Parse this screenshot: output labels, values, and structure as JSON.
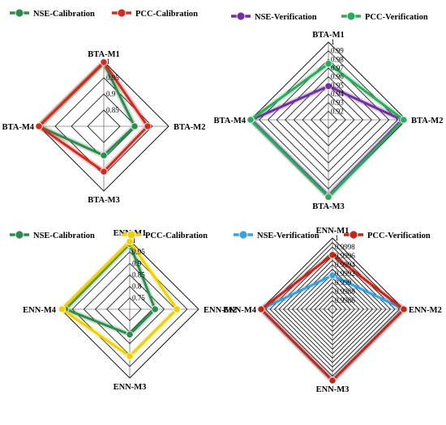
{
  "chart_data": [
    {
      "type": "radar",
      "axes": [
        "BTA-M1",
        "BTA-M2",
        "BTA-M3",
        "BTA-M4"
      ],
      "rlim": [
        0.8,
        1.0
      ],
      "ticks": [
        0.85,
        0.9,
        0.95,
        1
      ],
      "tick_labels": [
        "0.85",
        "0.9",
        "0.95",
        "1"
      ],
      "rings": [
        0.85,
        0.9,
        0.95,
        1
      ],
      "legend_position": "top",
      "series": [
        {
          "name": "NSE-Calibration",
          "color": "#2e8b4e",
          "values": [
            0.995,
            0.895,
            0.89,
            1.0
          ]
        },
        {
          "name": "PCC-Calibration",
          "color": "#d42a20",
          "values": [
            0.998,
            0.935,
            0.94,
            1.0
          ]
        }
      ]
    },
    {
      "type": "radar",
      "axes": [
        "BTA-M1",
        "BTA-M2",
        "BTA-M3",
        "BTA-M4"
      ],
      "rlim": [
        0.91,
        1.0
      ],
      "ticks": [
        0.92,
        0.93,
        0.94,
        0.95,
        0.96,
        0.97,
        0.98,
        0.99,
        1
      ],
      "tick_labels": [
        "0.92",
        "0.93",
        "0.94",
        "0.95",
        "0.96",
        "0.97",
        "0.98",
        "0.99",
        "1"
      ],
      "rings": [
        0.92,
        0.93,
        0.94,
        0.95,
        0.96,
        0.97,
        0.98,
        0.99,
        1
      ],
      "legend_position": "top",
      "series": [
        {
          "name": "NSE-Verification",
          "color": "#7030a0",
          "values": [
            0.949,
            0.995,
            0.998,
            0.999
          ]
        },
        {
          "name": "PCC-Verification",
          "color": "#2eaa5c",
          "values": [
            0.975,
            0.997,
            0.9995,
            1.0
          ]
        }
      ]
    },
    {
      "type": "radar",
      "axes": [
        "ENN-M1",
        "ENN-M2",
        "ENN-M3",
        "ENN-M4"
      ],
      "rlim": [
        0.7,
        1.0
      ],
      "ticks": [
        0.75,
        0.8,
        0.85,
        0.9,
        0.95,
        1
      ],
      "tick_labels": [
        "0.75",
        "0.8",
        "0.85",
        "0.9",
        "0.95",
        "1"
      ],
      "rings": [
        0.75,
        0.8,
        0.85,
        0.9,
        0.95,
        1
      ],
      "legend_position": "top",
      "series": [
        {
          "name": "NSE-Calibration",
          "color": "#2e8b4e",
          "values": [
            0.985,
            0.81,
            0.81,
            0.98
          ]
        },
        {
          "name": "PCC-Calibration",
          "color": "#f0d000",
          "values": [
            0.995,
            0.905,
            0.905,
            0.995
          ]
        }
      ]
    },
    {
      "type": "radar",
      "axes": [
        "ENN-M1",
        "ENN-M2",
        "ENN-M3",
        "ENN-M4"
      ],
      "rlim": [
        0.9984,
        1.0
      ],
      "ticks": [
        0.9986,
        0.9988,
        0.999,
        0.9992,
        0.9994,
        0.9996,
        0.9998,
        1
      ],
      "tick_labels": [
        "0.9986",
        "0.9988",
        "0.999",
        "0.9992",
        "0.9994",
        "0.9996",
        "0.9998",
        "1"
      ],
      "rings": [
        0.9985,
        0.9986,
        0.9987,
        0.9988,
        0.9989,
        0.999,
        0.9991,
        0.9992,
        0.9993,
        0.9994,
        0.9995,
        0.9996,
        0.9997,
        0.9998,
        0.9999,
        1
      ],
      "legend_position": "top",
      "series": [
        {
          "name": "NSE-Verification",
          "color": "#3aa0e0",
          "values": [
            0.99916,
            1.0,
            1.0,
            1.0
          ]
        },
        {
          "name": "PCC-Verification",
          "color": "#c0281c",
          "values": [
            0.99962,
            1.0,
            1.0,
            1.0
          ]
        }
      ]
    }
  ]
}
